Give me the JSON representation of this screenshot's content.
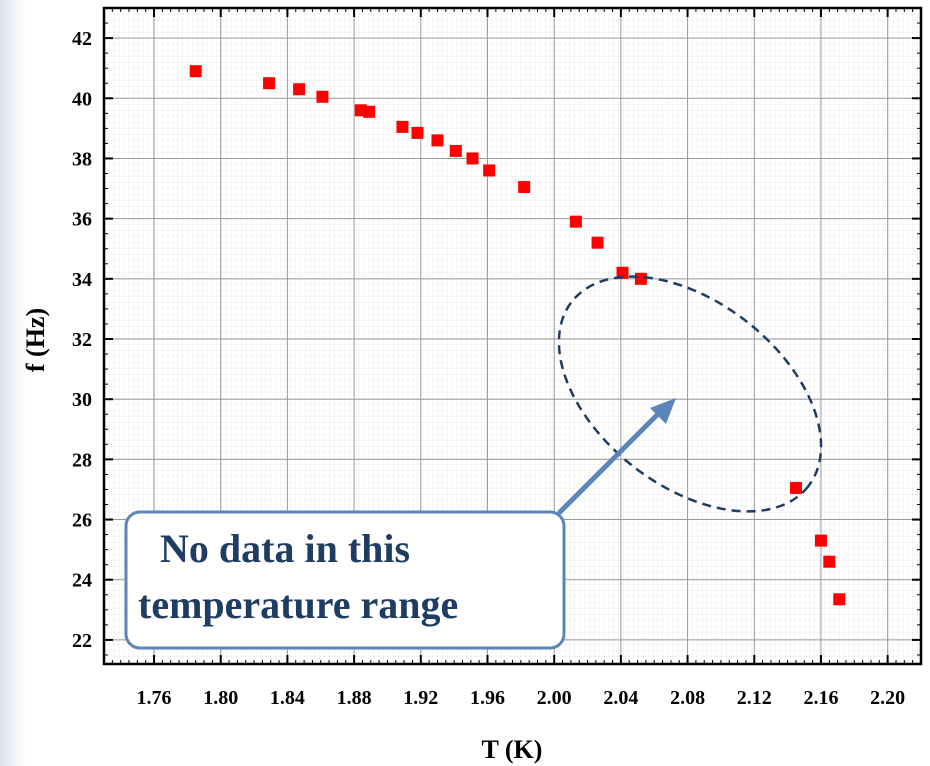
{
  "chart_data": {
    "type": "scatter",
    "title": "",
    "xlabel": "T (K)",
    "ylabel": "f (Hz)",
    "xlim": [
      1.73,
      2.22
    ],
    "ylim": [
      21.2,
      43.0
    ],
    "x_ticks": [
      "1.76",
      "1.80",
      "1.84",
      "1.88",
      "1.92",
      "1.96",
      "2.00",
      "2.04",
      "2.08",
      "2.12",
      "2.16",
      "2.20"
    ],
    "y_ticks": [
      "22",
      "24",
      "26",
      "28",
      "30",
      "32",
      "34",
      "36",
      "38",
      "40",
      "42"
    ],
    "grid": true,
    "marker": "square",
    "marker_color": "#ff0000",
    "series": [
      {
        "x": [
          1.785,
          1.829,
          1.847,
          1.861,
          1.884,
          1.889,
          1.909,
          1.918,
          1.93,
          1.941,
          1.951,
          1.961,
          1.982,
          2.013,
          2.026,
          2.041,
          2.052,
          2.145,
          2.16,
          2.165,
          2.171
        ],
        "y": [
          40.9,
          40.5,
          40.3,
          40.05,
          39.6,
          39.55,
          39.05,
          38.85,
          38.6,
          38.25,
          38.0,
          37.6,
          37.05,
          35.9,
          35.2,
          34.2,
          34.0,
          27.05,
          25.3,
          24.6,
          23.35
        ]
      }
    ],
    "annotation": {
      "text_lines": [
        "No data in this",
        "temperature range"
      ],
      "text_color": "#1f3d63",
      "box_border_color": "#5b84b8",
      "arrow_color": "#5b84b8",
      "ellipse_color": "#1f3d63"
    }
  }
}
